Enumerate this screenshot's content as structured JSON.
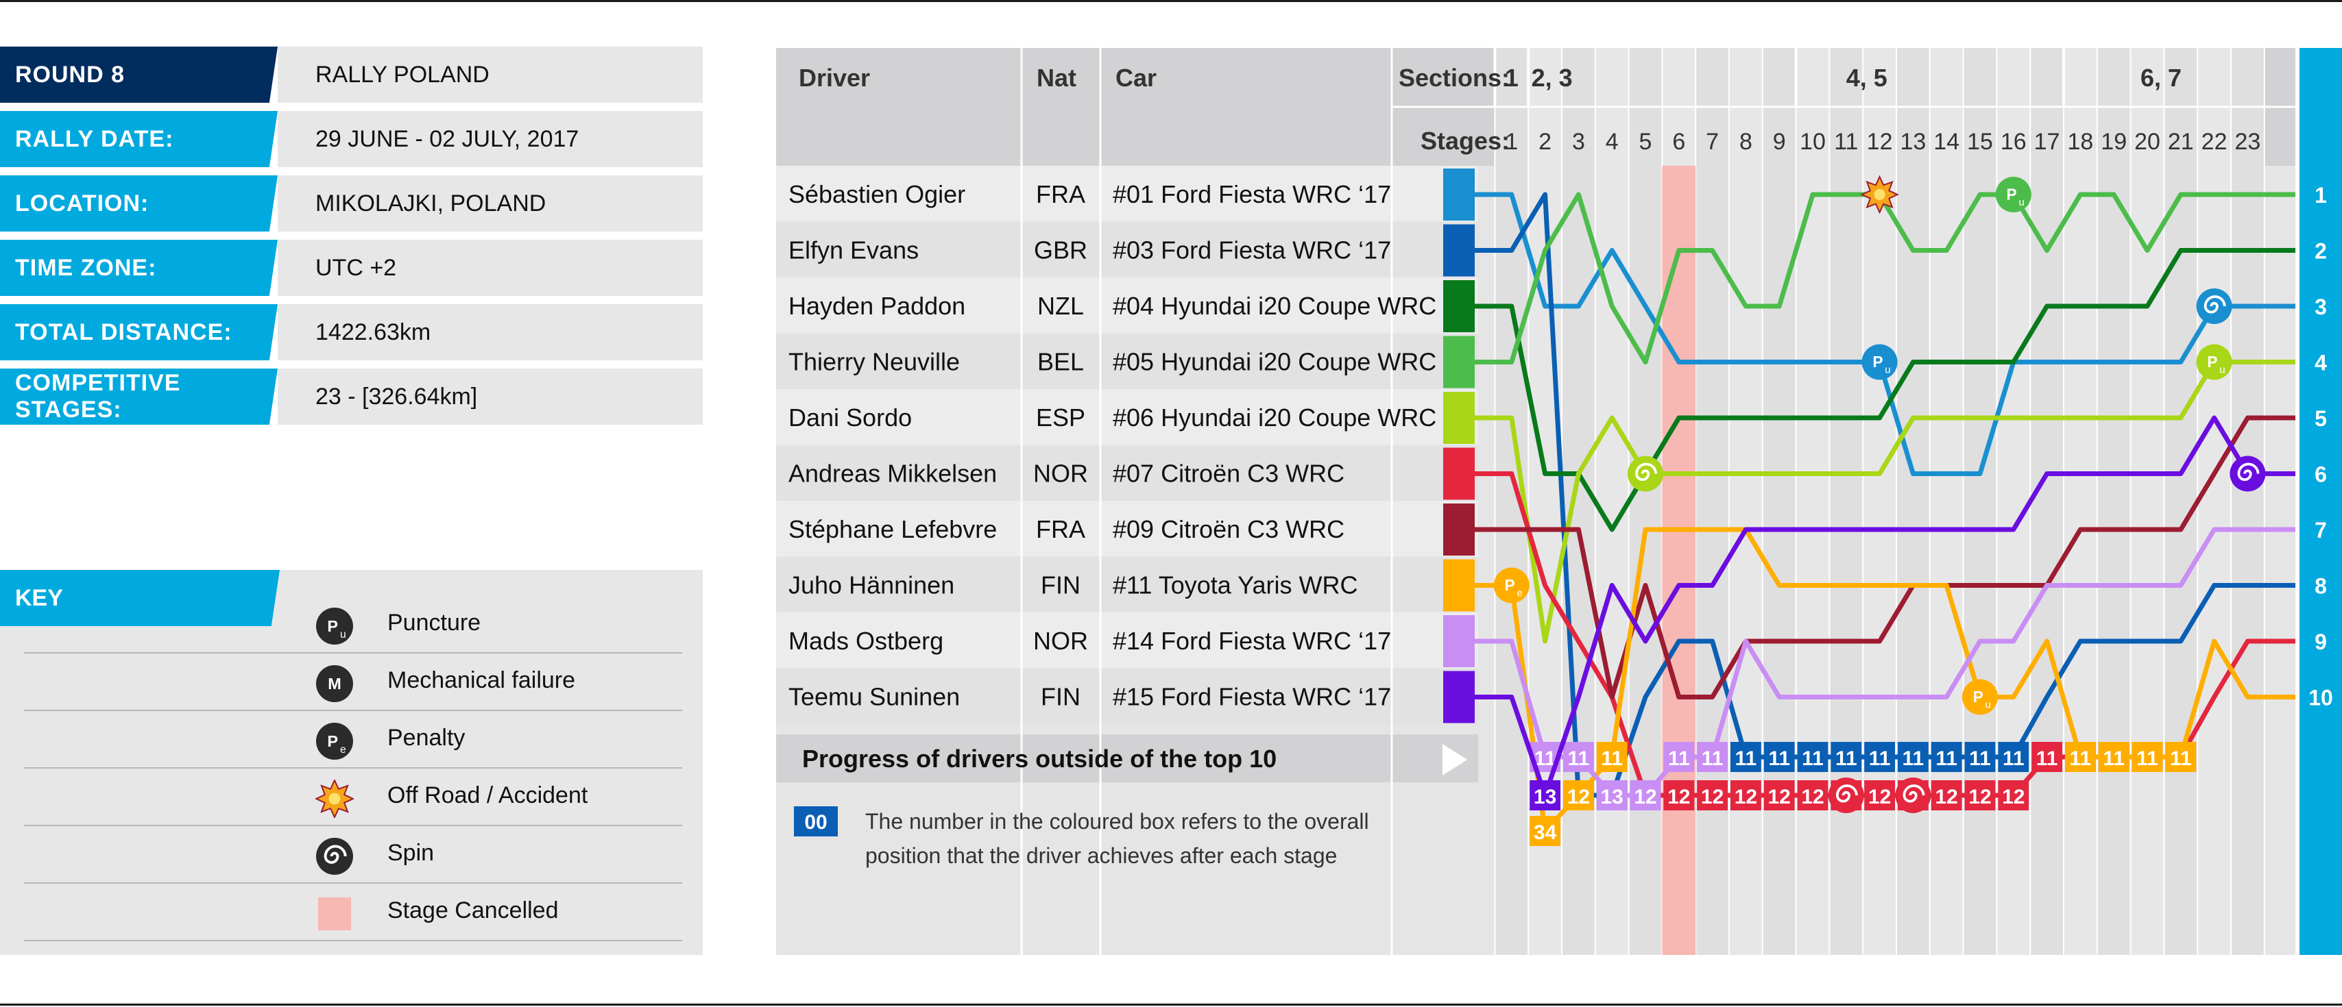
{
  "info": [
    {
      "label": "ROUND 8",
      "value": "RALLY POLAND"
    },
    {
      "label": "RALLY DATE:",
      "value": "29 JUNE - 02 JULY, 2017"
    },
    {
      "label": "LOCATION:",
      "value": "MIKOLAJKI, POLAND"
    },
    {
      "label": "TIME ZONE:",
      "value": "UTC +2"
    },
    {
      "label": "TOTAL DISTANCE:",
      "value": "1422.63km"
    },
    {
      "label": "COMPETITIVE STAGES:",
      "value": "23 - [326.64km]"
    }
  ],
  "key": {
    "title": "KEY",
    "items": [
      {
        "icon": "Pu",
        "label": "Puncture"
      },
      {
        "icon": "M",
        "label": "Mechanical failure"
      },
      {
        "icon": "Pe",
        "label": "Penalty"
      },
      {
        "icon": "offroad",
        "label": "Off Road / Accident"
      },
      {
        "icon": "spin",
        "label": "Spin"
      },
      {
        "icon": "cancelled",
        "label": "Stage Cancelled"
      }
    ]
  },
  "headers": {
    "driver": "Driver",
    "nat": "Nat",
    "car": "Car",
    "sections": "Sections:",
    "stages": "Stages:"
  },
  "sections": [
    "1",
    "2, 3",
    "4, 5",
    "6, 7"
  ],
  "outside_label": "Progress of drivers outside of the top 10",
  "note": {
    "box": "00",
    "line1": "The number in the coloured box refers to the overall",
    "line2": "position that the driver achieves after each stage"
  },
  "colors": {
    "cancelled": "#f7b7b3",
    "info_accent": "#00a9de",
    "info_dark": "#012c5e"
  },
  "chart_data": {
    "type": "line",
    "x": [
      0,
      1,
      2,
      3,
      4,
      5,
      6,
      7,
      8,
      9,
      10,
      11,
      12,
      13,
      14,
      15,
      16,
      17,
      18,
      19,
      20,
      21,
      22,
      23
    ],
    "cancelled_stage": 6,
    "y_meaning": "overall position after each stage",
    "drivers": [
      {
        "name": "Sébastien Ogier",
        "nat": "FRA",
        "car": "#01  Ford Fiesta WRC ‘17",
        "color": "#1a8fd0",
        "positions": [
          1,
          1,
          3,
          3,
          2,
          3,
          4,
          4,
          4,
          4,
          4,
          4,
          4,
          6,
          6,
          6,
          4,
          4,
          4,
          4,
          4,
          4,
          3,
          3
        ]
      },
      {
        "name": "Elfyn Evans",
        "nat": "GBR",
        "car": "#03  Ford Fiesta WRC ‘17",
        "color": "#0a5fb4",
        "positions": [
          2,
          2,
          1,
          13,
          12,
          10,
          9,
          9,
          11,
          11,
          11,
          11,
          11,
          11,
          11,
          11,
          11,
          10,
          9,
          9,
          9,
          9,
          8,
          8
        ]
      },
      {
        "name": "Hayden Paddon",
        "nat": "NZL",
        "car": "#04  Hyundai i20 Coupe WRC",
        "color": "#087a1b",
        "positions": [
          3,
          3,
          6,
          6,
          7,
          6,
          5,
          5,
          5,
          5,
          5,
          5,
          5,
          4,
          4,
          4,
          4,
          3,
          3,
          3,
          3,
          2,
          2,
          2
        ]
      },
      {
        "name": "Thierry Neuville",
        "nat": "BEL",
        "car": "#05  Hyundai i20 Coupe WRC",
        "color": "#4cbc4a",
        "positions": [
          4,
          4,
          2,
          1,
          3,
          4,
          2,
          2,
          3,
          3,
          1,
          1,
          1,
          2,
          2,
          1,
          1,
          2,
          1,
          1,
          2,
          1,
          1,
          1
        ]
      },
      {
        "name": "Dani Sordo",
        "nat": "ESP",
        "car": "#06  Hyundai i20 Coupe WRC",
        "color": "#a9d616",
        "positions": [
          5,
          5,
          9,
          6,
          5,
          6,
          6,
          6,
          6,
          6,
          6,
          6,
          6,
          5,
          5,
          5,
          5,
          5,
          5,
          5,
          5,
          5,
          4,
          4
        ]
      },
      {
        "name": "Andreas Mikkelsen",
        "nat": "NOR",
        "car": "#07  Citroën C3 WRC",
        "color": "#e4263f",
        "positions": [
          6,
          6,
          8,
          9,
          10,
          12,
          12,
          12,
          12,
          12,
          12,
          12,
          12,
          12,
          12,
          12,
          12,
          11,
          11,
          11,
          11,
          11,
          10,
          9
        ]
      },
      {
        "name": "Stéphane Lefebvre",
        "nat": "FRA",
        "car": "#09  Citroën C3 WRC",
        "color": "#9c1c31",
        "positions": [
          7,
          7,
          7,
          7,
          10,
          8,
          10,
          10,
          9,
          9,
          9,
          9,
          9,
          8,
          8,
          8,
          8,
          8,
          7,
          7,
          7,
          7,
          6,
          5
        ]
      },
      {
        "name": "Juho Hänninen",
        "nat": "FIN",
        "car": "#11  Toyota Yaris WRC",
        "color": "#ffae00",
        "positions": [
          8,
          8,
          34,
          12,
          11,
          7,
          7,
          7,
          7,
          8,
          8,
          8,
          8,
          8,
          8,
          10,
          10,
          9,
          11,
          11,
          11,
          11,
          9,
          10
        ]
      },
      {
        "name": "Mads Ostberg",
        "nat": "NOR",
        "car": "#14  Ford Fiesta WRC ‘17",
        "color": "#c98ef3",
        "positions": [
          9,
          9,
          11,
          11,
          13,
          12,
          11,
          11,
          9,
          10,
          10,
          10,
          10,
          10,
          10,
          9,
          9,
          8,
          8,
          8,
          8,
          8,
          7,
          7
        ]
      },
      {
        "name": "Teemu Suninen",
        "nat": "FIN",
        "car": "#15  Ford Fiesta WRC ‘17",
        "color": "#6a0ee0",
        "positions": [
          10,
          10,
          13,
          10,
          8,
          9,
          8,
          8,
          7,
          7,
          7,
          7,
          7,
          7,
          7,
          7,
          7,
          6,
          6,
          6,
          6,
          6,
          5,
          6
        ]
      }
    ],
    "incidents": [
      {
        "driver": "Thierry Neuville",
        "stage": 16,
        "type": "Pu"
      },
      {
        "driver": "Ogier",
        "stage": 12,
        "type": "Pu"
      },
      {
        "driver": "Dani Sordo",
        "stage": 22,
        "type": "Pu"
      },
      {
        "driver": "Juho Hänninen",
        "stage": 15,
        "type": "Pu"
      },
      {
        "driver": "Juho Hänninen",
        "stage": 1,
        "type": "Pe"
      },
      {
        "driver": "Dani Sordo",
        "stage": 5,
        "type": "spin"
      },
      {
        "driver": "Sébastien Ogier",
        "stage": 22,
        "type": "spin"
      },
      {
        "driver": "Teemu Suninen",
        "stage": 23,
        "type": "spin"
      },
      {
        "driver": "Andreas Mikkelsen",
        "stage": 11,
        "type": "spin"
      },
      {
        "driver": "Andreas Mikkelsen",
        "stage": 13,
        "type": "spin"
      },
      {
        "driver": "Thierry Neuville",
        "stage": 12,
        "type": "offroad"
      }
    ]
  }
}
